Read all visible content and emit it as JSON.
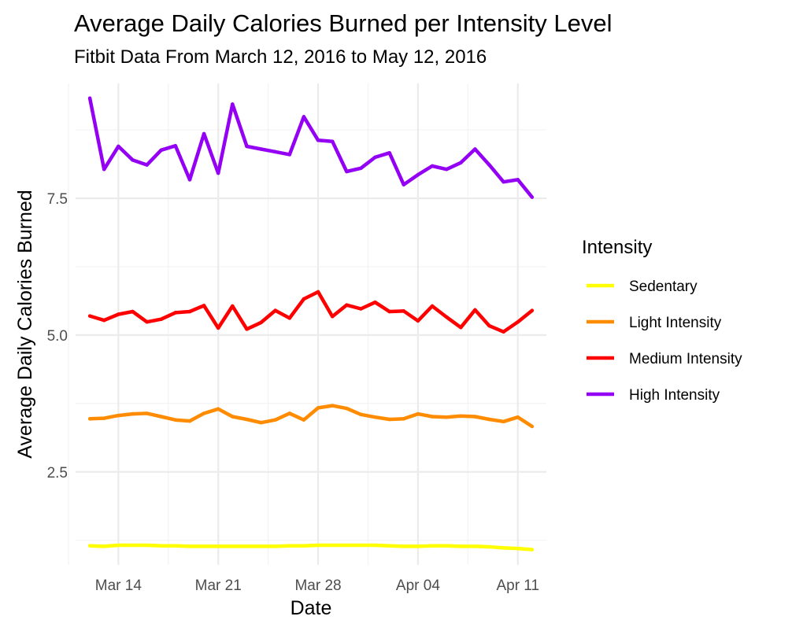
{
  "chart_data": {
    "type": "line",
    "title": "Average Daily Calories Burned per Intensity Level",
    "subtitle": "Fitbit Data From March 12, 2016 to May 12, 2016",
    "xlabel": "Date",
    "ylabel": "Average Daily Calories Burned",
    "x_ticks": [
      {
        "date": "2016-03-14",
        "label": "Mar 14"
      },
      {
        "date": "2016-03-21",
        "label": "Mar 21"
      },
      {
        "date": "2016-03-28",
        "label": "Mar 28"
      },
      {
        "date": "2016-04-04",
        "label": "Apr 04"
      },
      {
        "date": "2016-04-11",
        "label": "Apr 11"
      }
    ],
    "x_range": [
      "2016-03-11",
      "2016-04-13"
    ],
    "y_ticks": [
      2.5,
      5.0,
      7.5
    ],
    "y_tick_labels": [
      "2.5",
      "5.0",
      "7.5"
    ],
    "ylim": [
      0.8,
      9.6
    ],
    "grid": true,
    "legend": {
      "title": "Intensity",
      "position": "right"
    },
    "x": [
      "2016-03-12",
      "2016-03-13",
      "2016-03-14",
      "2016-03-15",
      "2016-03-16",
      "2016-03-17",
      "2016-03-18",
      "2016-03-19",
      "2016-03-20",
      "2016-03-21",
      "2016-03-22",
      "2016-03-23",
      "2016-03-24",
      "2016-03-25",
      "2016-03-26",
      "2016-03-27",
      "2016-03-28",
      "2016-03-29",
      "2016-03-30",
      "2016-03-31",
      "2016-04-01",
      "2016-04-02",
      "2016-04-03",
      "2016-04-04",
      "2016-04-05",
      "2016-04-06",
      "2016-04-07",
      "2016-04-08",
      "2016-04-09",
      "2016-04-10",
      "2016-04-11",
      "2016-04-12"
    ],
    "series": [
      {
        "name": "Sedentary",
        "color": "#ffff00",
        "values": [
          1.15,
          1.14,
          1.16,
          1.16,
          1.16,
          1.15,
          1.15,
          1.14,
          1.14,
          1.14,
          1.14,
          1.14,
          1.14,
          1.14,
          1.15,
          1.15,
          1.16,
          1.16,
          1.16,
          1.16,
          1.16,
          1.15,
          1.14,
          1.14,
          1.15,
          1.15,
          1.14,
          1.14,
          1.13,
          1.11,
          1.1,
          1.08
        ]
      },
      {
        "name": "Light Intensity",
        "color": "#ff8c00",
        "values": [
          3.47,
          3.48,
          3.53,
          3.56,
          3.57,
          3.51,
          3.45,
          3.43,
          3.57,
          3.65,
          3.51,
          3.46,
          3.4,
          3.45,
          3.57,
          3.45,
          3.67,
          3.71,
          3.66,
          3.55,
          3.5,
          3.46,
          3.47,
          3.56,
          3.51,
          3.5,
          3.52,
          3.51,
          3.46,
          3.42,
          3.5,
          3.33
        ]
      },
      {
        "name": "Medium Intensity",
        "color": "#ff0000",
        "values": [
          5.35,
          5.27,
          5.38,
          5.43,
          5.24,
          5.29,
          5.41,
          5.43,
          5.54,
          5.13,
          5.53,
          5.11,
          5.23,
          5.45,
          5.31,
          5.66,
          5.79,
          5.34,
          5.55,
          5.48,
          5.6,
          5.43,
          5.44,
          5.26,
          5.53,
          5.33,
          5.14,
          5.46,
          5.17,
          5.06,
          5.24,
          5.45
        ]
      },
      {
        "name": "High Intensity",
        "color": "#9400f4",
        "values": [
          9.33,
          8.03,
          8.45,
          8.2,
          8.11,
          8.38,
          8.46,
          7.84,
          8.68,
          7.96,
          9.22,
          8.45,
          8.4,
          8.35,
          8.3,
          8.99,
          8.56,
          8.54,
          7.99,
          8.05,
          8.25,
          8.33,
          7.75,
          7.93,
          8.09,
          8.03,
          8.15,
          8.4,
          8.11,
          7.8,
          7.84,
          7.52
        ]
      }
    ]
  }
}
